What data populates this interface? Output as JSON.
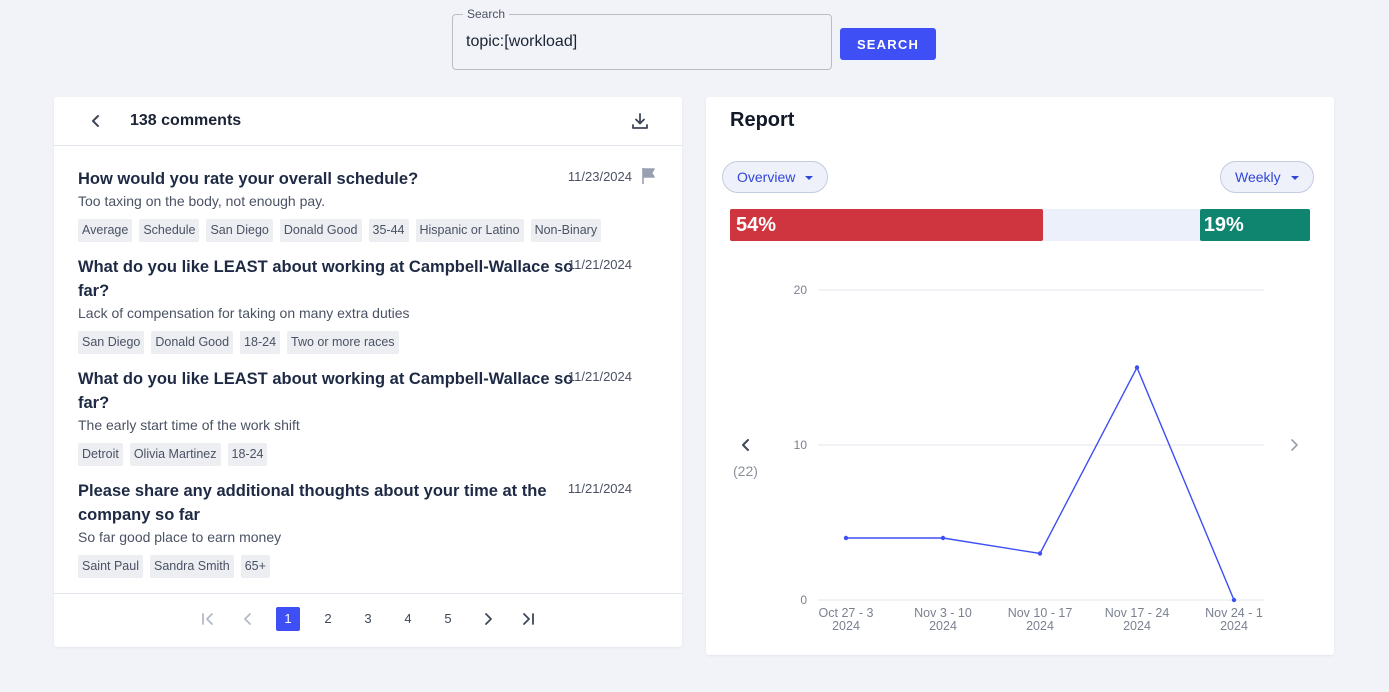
{
  "search": {
    "legend": "Search",
    "value": "topic:[workload]",
    "button_label": "SEARCH"
  },
  "comments": {
    "count_label": "138 comments",
    "items": [
      {
        "question": "How would you rate your overall schedule?",
        "date": "11/23/2024",
        "text": "Too taxing on the body, not enough pay.",
        "tags": [
          "Average",
          "Schedule",
          "San Diego",
          "Donald Good",
          "35-44",
          "Hispanic or Latino",
          "Non-Binary"
        ],
        "flagged": true
      },
      {
        "question": "What do you like LEAST about working at Campbell-Wallace so far?",
        "date": "11/21/2024",
        "text": "Lack of compensation for taking on many extra duties",
        "tags": [
          "San Diego",
          "Donald Good",
          "18-24",
          "Two or more races"
        ]
      },
      {
        "question": "What do you like LEAST about working at Campbell-Wallace so far?",
        "date": "11/21/2024",
        "text": "The early start time of the work shift",
        "tags": [
          "Detroit",
          "Olivia Martinez",
          "18-24"
        ]
      },
      {
        "question": "Please share any additional thoughts about your time at the company so far",
        "date": "11/21/2024",
        "text": "So far good place to earn money",
        "tags": [
          "Saint Paul",
          "Sandra Smith",
          "65+"
        ]
      }
    ]
  },
  "pagination": {
    "pages": [
      "1",
      "2",
      "3",
      "4",
      "5"
    ],
    "current": "1"
  },
  "report": {
    "title": "Report",
    "view_select": "Overview",
    "period_select": "Weekly",
    "negative": {
      "label": "54%",
      "value": 0.54,
      "color": "#cf353e"
    },
    "positive": {
      "label": "19%",
      "value": 0.19,
      "color": "#0f8570"
    },
    "chart_count": "(22)"
  },
  "chart_data": {
    "type": "line",
    "categories": [
      [
        "Oct 27 - 3",
        "2024"
      ],
      [
        "Nov 3 - 10",
        "2024"
      ],
      [
        "Nov 10 - 17",
        "2024"
      ],
      [
        "Nov 17 - 24",
        "2024"
      ],
      [
        "Nov 24 - 1",
        "2024"
      ]
    ],
    "values": [
      4,
      4,
      3,
      15,
      0
    ],
    "yticks": [
      0,
      10,
      20
    ],
    "ylim": [
      0,
      20
    ],
    "line_color": "#3d4ff5"
  }
}
